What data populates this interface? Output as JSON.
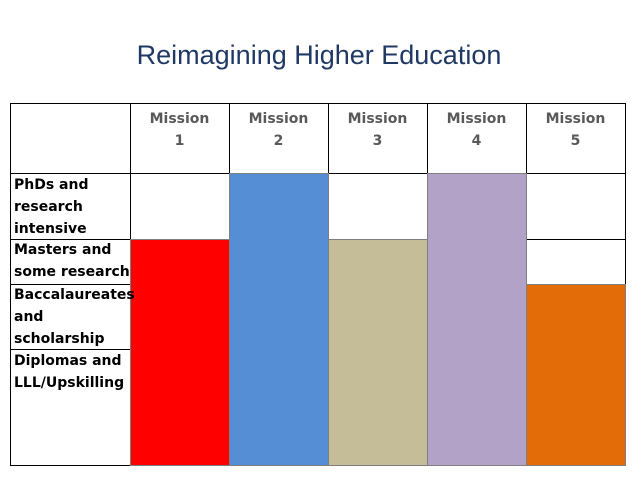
{
  "title": "Reimagining Higher Education",
  "columns": [
    [
      "Mission",
      "1"
    ],
    [
      "Mission",
      "2"
    ],
    [
      "Mission",
      "3"
    ],
    [
      "Mission",
      "4"
    ],
    [
      "Mission",
      "5"
    ]
  ],
  "rows": [
    [
      "PhDs and",
      "research",
      "intensive"
    ],
    [
      "Masters and",
      "some research"
    ],
    [
      "Baccalaureates",
      "and",
      "scholarship"
    ],
    [
      "Diplomas and",
      "LLL/Upskilling"
    ]
  ]
}
